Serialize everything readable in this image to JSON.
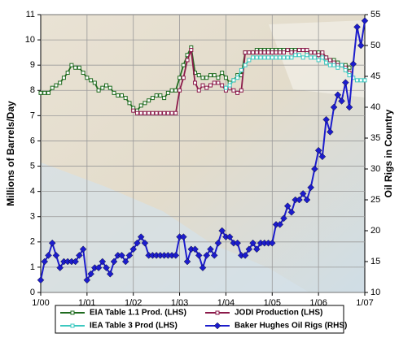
{
  "chart_data": {
    "type": "line",
    "categories": [
      "1/00",
      null,
      null,
      null,
      null,
      null,
      null,
      null,
      null,
      null,
      null,
      null,
      "1/01",
      null,
      null,
      null,
      null,
      null,
      null,
      null,
      null,
      null,
      null,
      null,
      "1/02",
      null,
      null,
      null,
      null,
      null,
      null,
      null,
      null,
      null,
      null,
      null,
      "1/03",
      null,
      null,
      null,
      null,
      null,
      null,
      null,
      null,
      null,
      null,
      null,
      "1/04",
      null,
      null,
      null,
      null,
      null,
      null,
      null,
      null,
      null,
      null,
      null,
      "1/05",
      null,
      null,
      null,
      null,
      null,
      null,
      null,
      null,
      null,
      null,
      null,
      "1/06",
      null,
      null,
      null,
      null,
      null,
      null,
      null,
      null,
      null,
      null,
      null,
      "1/07"
    ],
    "ylabel": "Millions of Barrels/Day",
    "y2label": "Oil Rigs in Country",
    "ylim": [
      0,
      11
    ],
    "yticks": [
      0,
      1,
      2,
      3,
      4,
      5,
      6,
      7,
      8,
      9,
      10,
      11
    ],
    "y2lim": [
      10,
      55
    ],
    "y2ticks": [
      10,
      15,
      20,
      25,
      30,
      35,
      40,
      45,
      50,
      55
    ],
    "grid": true,
    "legend": "bottom",
    "series": [
      {
        "name": "EIA Table 1.1 Prod. (LHS)",
        "color": "#1f6b1f",
        "marker": "square",
        "values": [
          7.9,
          7.9,
          7.9,
          8.1,
          8.2,
          8.3,
          8.5,
          8.7,
          9.0,
          8.9,
          8.9,
          8.7,
          8.5,
          8.4,
          8.3,
          8.0,
          8.1,
          8.2,
          8.1,
          7.9,
          7.8,
          7.8,
          7.7,
          7.5,
          7.3,
          7.2,
          7.4,
          7.5,
          7.6,
          7.7,
          7.8,
          7.8,
          7.7,
          7.9,
          8.0,
          8.0,
          8.5,
          9.0,
          9.4,
          9.7,
          8.7,
          8.6,
          8.5,
          8.5,
          8.6,
          8.6,
          8.5,
          8.7,
          8.5,
          8.3,
          8.4,
          8.6,
          8.6,
          9.5,
          9.5,
          9.5,
          9.6,
          9.6,
          9.6,
          9.6,
          9.6,
          9.6,
          9.6,
          9.6,
          9.6,
          9.6,
          9.6,
          9.6,
          9.6,
          9.5,
          9.5,
          9.5,
          9.5,
          9.4,
          9.3,
          9.2,
          9.2,
          9.1,
          9.0,
          9.0,
          8.9,
          null,
          null,
          null,
          null
        ]
      },
      {
        "name": "JODI Production (LHS)",
        "color": "#8b1a4a",
        "marker": "square",
        "values": [
          null,
          null,
          null,
          null,
          null,
          null,
          null,
          null,
          null,
          null,
          null,
          null,
          null,
          null,
          null,
          null,
          null,
          null,
          null,
          null,
          null,
          null,
          null,
          null,
          7.2,
          7.1,
          7.1,
          7.1,
          7.1,
          7.1,
          7.1,
          7.1,
          7.1,
          7.1,
          7.1,
          7.1,
          8.0,
          8.5,
          9.2,
          9.6,
          8.3,
          8.0,
          8.2,
          8.1,
          8.2,
          8.3,
          8.3,
          8.2,
          8.0,
          8.1,
          8.0,
          7.9,
          8.0,
          9.5,
          9.5,
          9.5,
          9.5,
          9.5,
          9.5,
          9.5,
          9.5,
          9.5,
          9.5,
          9.5,
          9.6,
          9.5,
          9.5,
          9.6,
          9.6,
          9.6,
          9.5,
          9.5,
          9.4,
          9.5,
          9.3,
          9.2,
          9.1,
          9.0,
          9.0,
          8.9,
          8.7,
          null,
          null,
          null,
          null
        ]
      },
      {
        "name": "IEA Table 3 Prod (LHS)",
        "color": "#3cc8c0",
        "marker": "square",
        "values": [
          null,
          null,
          null,
          null,
          null,
          null,
          null,
          null,
          null,
          null,
          null,
          null,
          null,
          null,
          null,
          null,
          null,
          null,
          null,
          null,
          null,
          null,
          null,
          null,
          null,
          null,
          null,
          null,
          null,
          null,
          null,
          null,
          null,
          null,
          null,
          null,
          null,
          null,
          null,
          null,
          null,
          null,
          null,
          null,
          null,
          null,
          null,
          null,
          8.1,
          8.2,
          8.4,
          8.5,
          8.8,
          9.0,
          9.2,
          9.3,
          9.3,
          9.3,
          9.3,
          9.3,
          9.3,
          9.3,
          9.3,
          9.3,
          9.3,
          9.3,
          9.4,
          9.4,
          9.3,
          9.4,
          9.3,
          9.3,
          9.2,
          9.3,
          9.1,
          9.0,
          9.0,
          8.9,
          9.0,
          8.8,
          8.6,
          8.5,
          8.4,
          8.4,
          8.4
        ]
      },
      {
        "name": "Baker Hughes Oil Rigs (RHS)",
        "color": "#1c1ccc",
        "marker": "diamond",
        "axis": "y2",
        "values": [
          12,
          15,
          16,
          18,
          16,
          14,
          15,
          15,
          15,
          15,
          16,
          17,
          12,
          13,
          14,
          14,
          15,
          14,
          13,
          15,
          16,
          16,
          15,
          16,
          17,
          18,
          19,
          18,
          16,
          16,
          16,
          16,
          16,
          16,
          16,
          16,
          19,
          19,
          15,
          17,
          17,
          16,
          14,
          16,
          17,
          16,
          18,
          20,
          19,
          19,
          18,
          18,
          16,
          16,
          17,
          18,
          17,
          18,
          18,
          18,
          18,
          21,
          21,
          22,
          24,
          23,
          25,
          25,
          26,
          25,
          27,
          30,
          33,
          32,
          38,
          36,
          40,
          42,
          41,
          44,
          40,
          47,
          53,
          50,
          54
        ]
      }
    ]
  }
}
